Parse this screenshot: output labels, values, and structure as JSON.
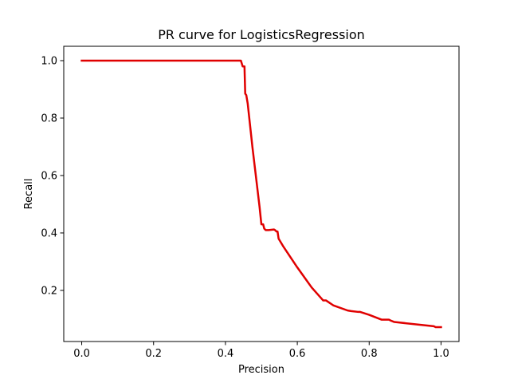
{
  "chart_data": {
    "type": "line",
    "title": "PR curve for LogisticsRegression",
    "xlabel": "Precision",
    "ylabel": "Recall",
    "xlim": [
      -0.05,
      1.05
    ],
    "ylim": [
      0.022,
      1.05
    ],
    "grid": false,
    "legend": "none",
    "x_ticks": [
      0.0,
      0.2,
      0.4,
      0.6,
      0.8,
      1.0
    ],
    "x_tick_labels": [
      "0.0",
      "0.2",
      "0.4",
      "0.6",
      "0.8",
      "1.0"
    ],
    "y_ticks": [
      0.2,
      0.4,
      0.6,
      0.8,
      1.0
    ],
    "y_tick_labels": [
      "0.2",
      "0.4",
      "0.6",
      "0.8",
      "1.0"
    ],
    "series": [
      {
        "color": "#e00000",
        "x": [
          0.0,
          0.443,
          0.445,
          0.448,
          0.453,
          0.455,
          0.458,
          0.462,
          0.475,
          0.495,
          0.5,
          0.505,
          0.508,
          0.512,
          0.52,
          0.535,
          0.538,
          0.542,
          0.545,
          0.548,
          0.56,
          0.6,
          0.64,
          0.672,
          0.68,
          0.7,
          0.74,
          0.75,
          0.77,
          0.775,
          0.8,
          0.835,
          0.855,
          0.86,
          0.87,
          0.98,
          0.985,
          1.0
        ],
        "y": [
          1.0,
          1.0,
          0.992,
          0.98,
          0.98,
          0.885,
          0.88,
          0.85,
          0.7,
          0.49,
          0.43,
          0.43,
          0.415,
          0.41,
          0.41,
          0.412,
          0.41,
          0.405,
          0.405,
          0.38,
          0.355,
          0.28,
          0.21,
          0.165,
          0.165,
          0.148,
          0.13,
          0.128,
          0.125,
          0.125,
          0.115,
          0.098,
          0.098,
          0.095,
          0.09,
          0.075,
          0.072,
          0.072
        ]
      }
    ]
  }
}
